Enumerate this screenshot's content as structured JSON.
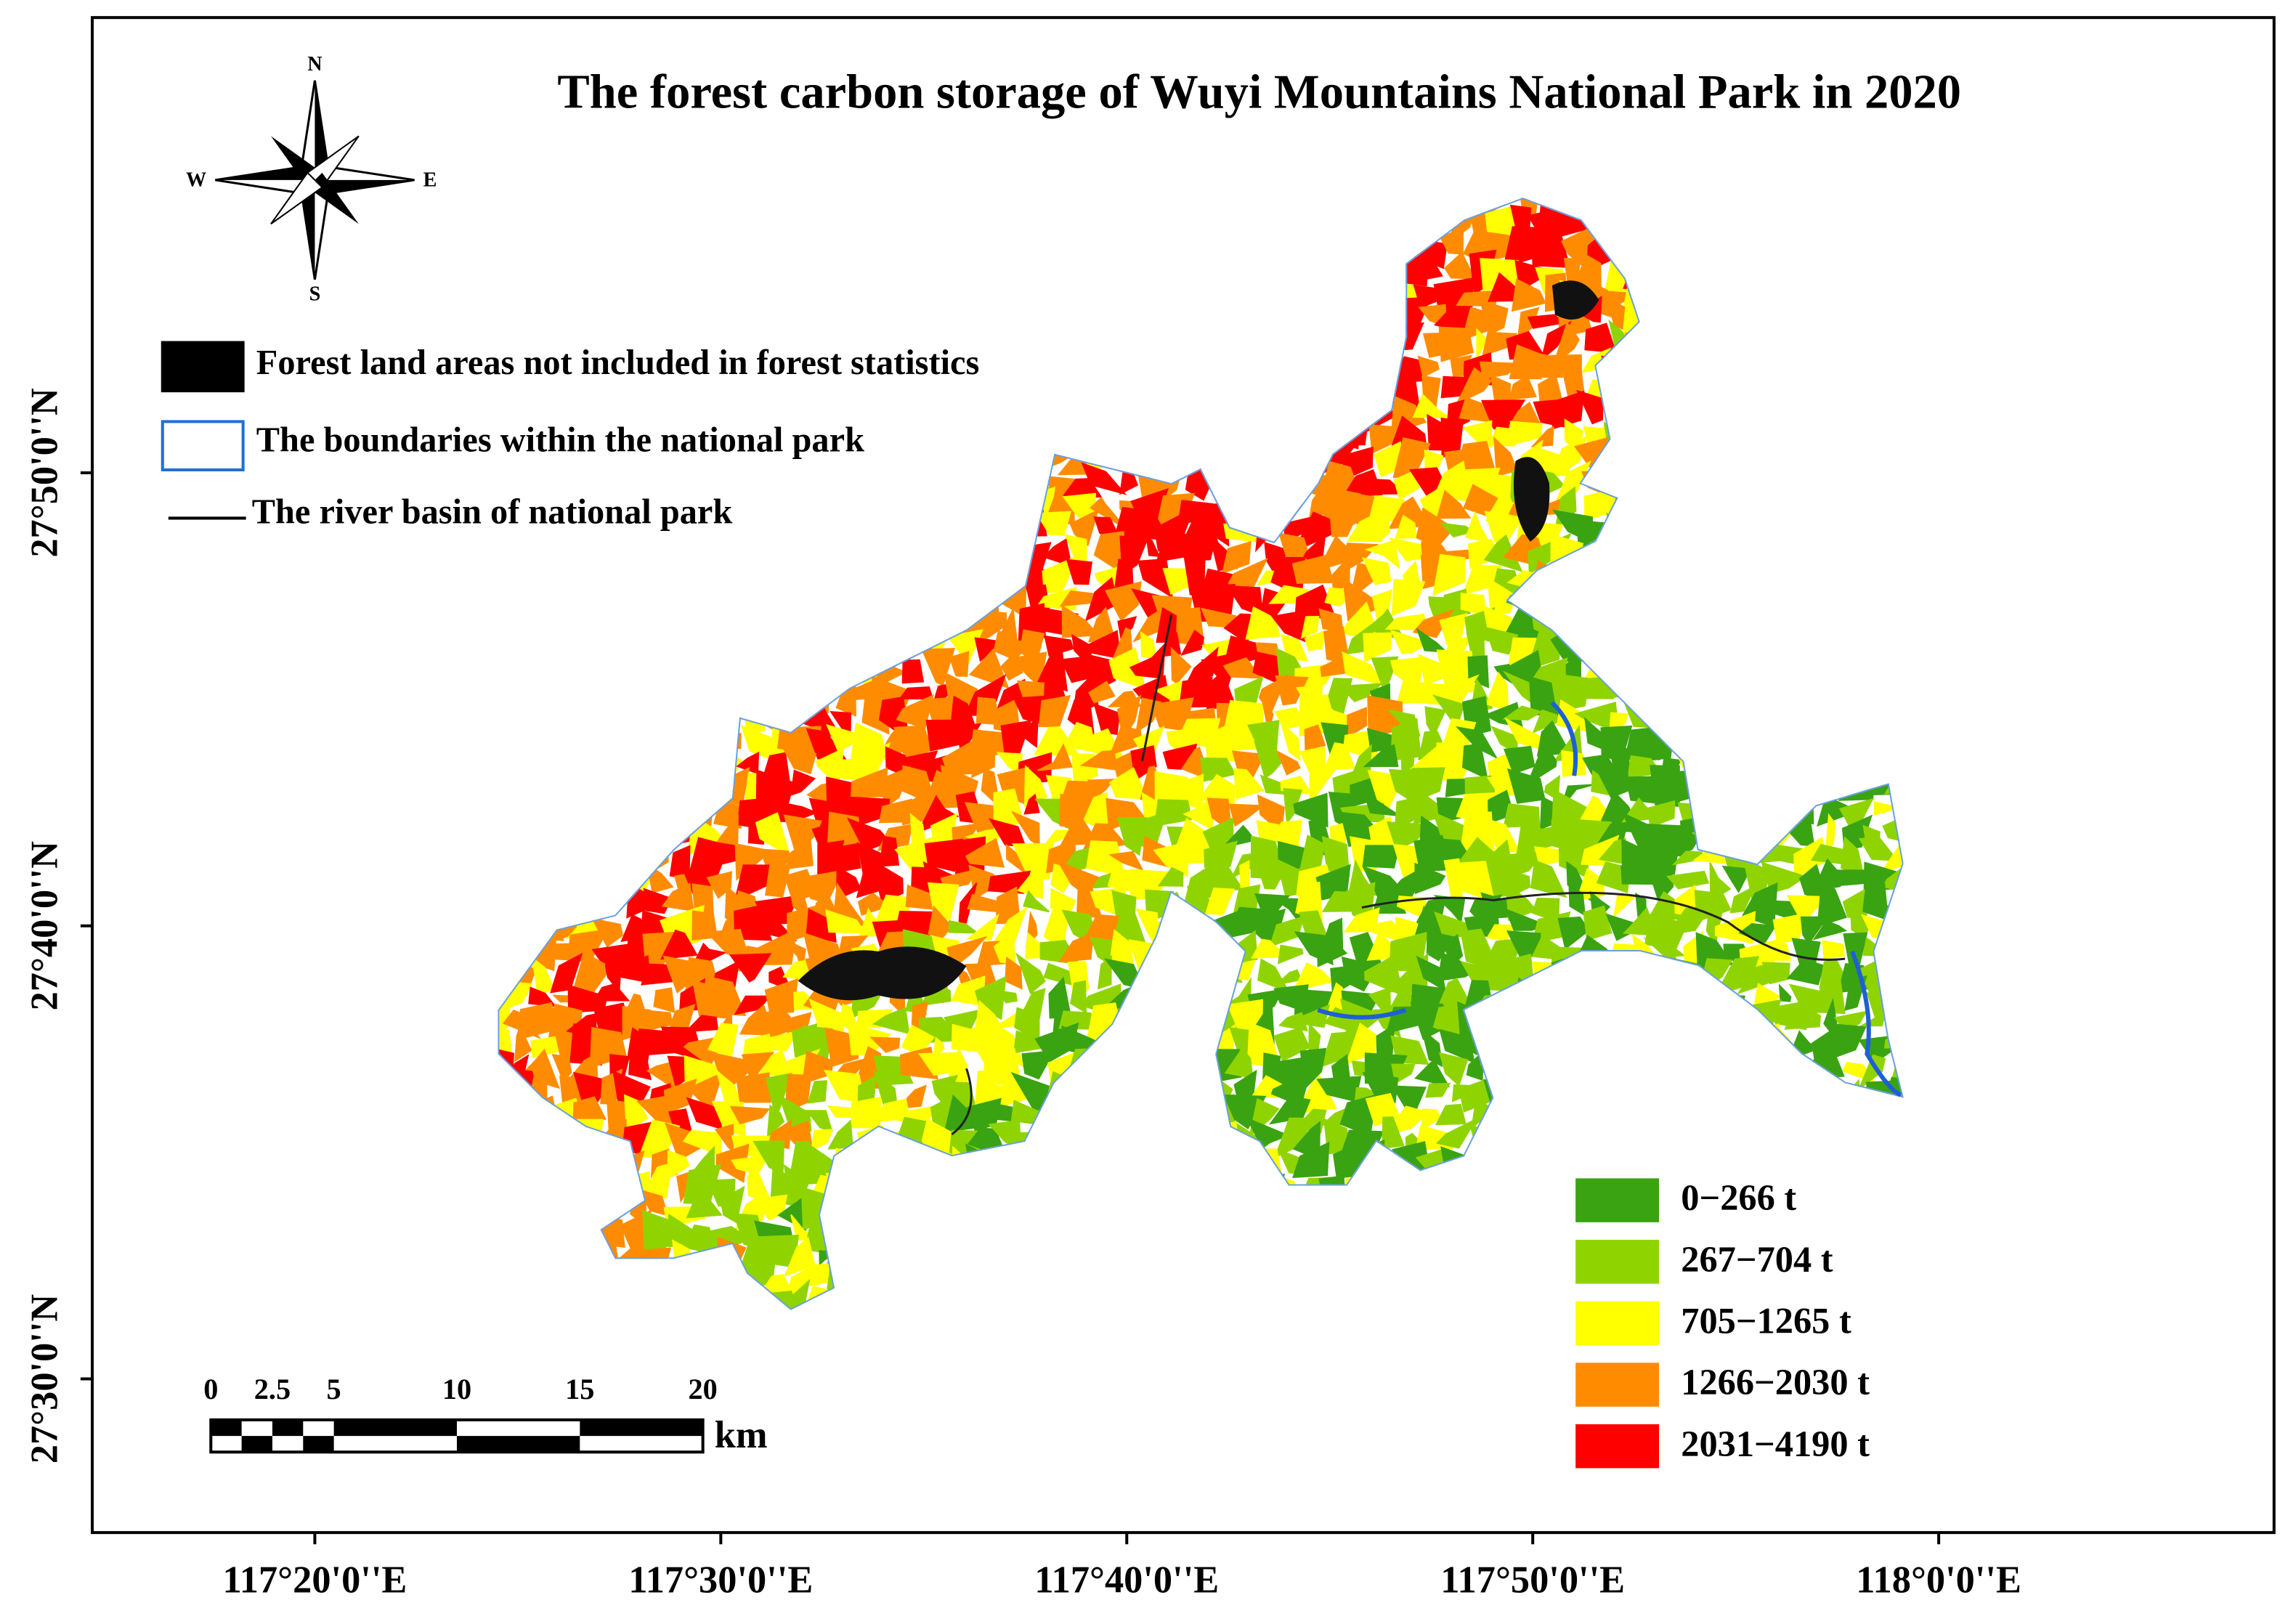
{
  "title": "The forest carbon storage of Wuyi Mountains National Park in 2020",
  "compass": {
    "north": "N",
    "south": "S",
    "east": "E",
    "west": "W"
  },
  "symbol_legend": [
    {
      "label": "Forest land areas not included in forest statistics"
    },
    {
      "label": "The boundaries within the national park"
    },
    {
      "label": "The river basin of national park"
    }
  ],
  "class_legend": [
    {
      "label": "0−266 t",
      "color": "#3aa312"
    },
    {
      "label": "267−704 t",
      "color": "#8fd400"
    },
    {
      "label": "705−1265 t",
      "color": "#ffff00"
    },
    {
      "label": "1266−2030 t",
      "color": "#ff8c00"
    },
    {
      "label": "2031−4190 t",
      "color": "#ff0000"
    }
  ],
  "x_axis": {
    "labels": [
      "117°20'0''E",
      "117°30'0''E",
      "117°40'0''E",
      "117°50'0''E",
      "118°0'0''E"
    ]
  },
  "y_axis": {
    "labels": [
      "27°50'0''N",
      "27°40'0''N",
      "27°30'0''N"
    ]
  },
  "scale_bar": {
    "ticks": [
      0,
      2.5,
      5,
      10,
      15,
      20
    ],
    "unit": "km"
  }
}
